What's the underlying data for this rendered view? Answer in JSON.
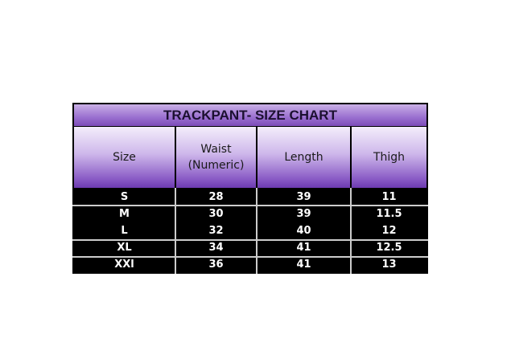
{
  "title": "TRACKPANT- SIZE CHART",
  "columns": [
    "Size",
    "Waist (Numeric)",
    "Length",
    "Thigh"
  ],
  "column_lines": [
    [
      "Size"
    ],
    [
      "Waist",
      "(Numeric)"
    ],
    [
      "Length"
    ],
    [
      "Thigh"
    ]
  ],
  "rows": [
    [
      "S",
      "28",
      "39",
      "11"
    ],
    [
      "M",
      "30",
      "39",
      "11.5"
    ],
    [
      "L",
      "32",
      "40",
      "12"
    ],
    [
      "XL",
      "34",
      "41",
      "12.5"
    ],
    [
      "XXl",
      "36",
      "41",
      "13"
    ]
  ],
  "colors": {
    "header_purple": "#8a5cc6",
    "body_bg": "#000000",
    "body_text": "#ffffff"
  }
}
